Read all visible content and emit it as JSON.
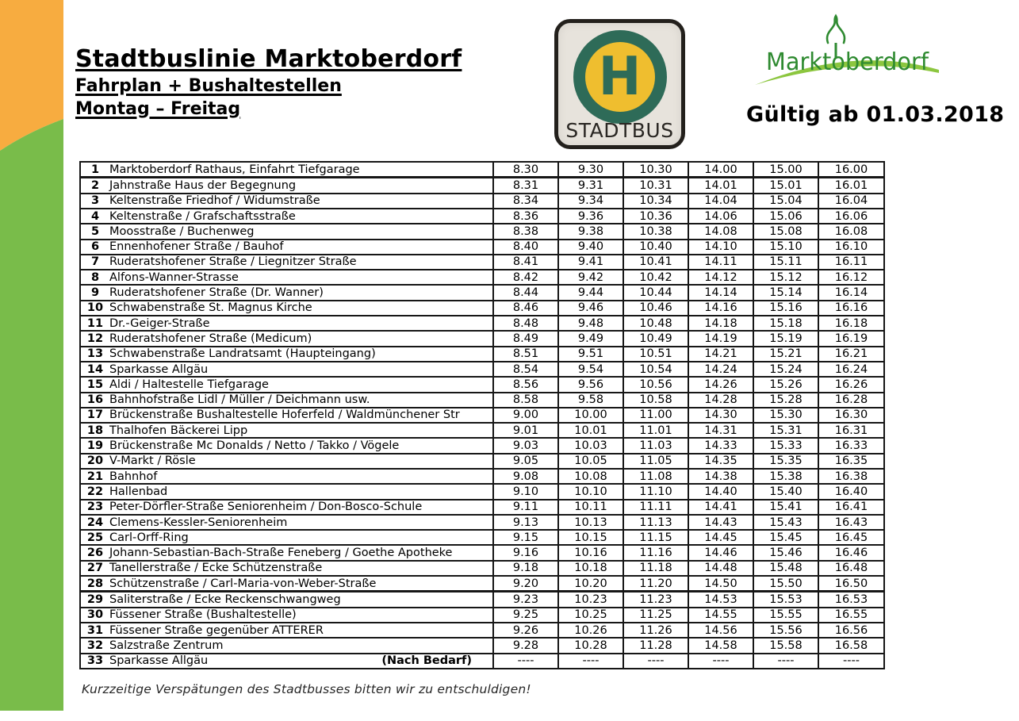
{
  "page": {
    "title_lines": [
      "Stadtbuslinie Marktoberdorf",
      "Fahrplan + Bushaltestellen",
      "Montag – Freitag"
    ],
    "validity": "Gültig ab 01.03.2018",
    "footer_note": "Kurzzeitige Verspätungen des Stadtbusses bitten wir zu entschuldigen!"
  },
  "stadtbus_sign": {
    "h_letter": "H",
    "caption": "STADTBUS"
  },
  "city_logo": {
    "text": "Marktoberdorf"
  },
  "colors": {
    "band_orange": "#F7AC40",
    "band_green": "#79BC4A",
    "sign_green": "#2E6B58",
    "sign_yellow": "#EFBE2F",
    "sign_bg": "#E7E3DC",
    "logo_green": "#2E8A30",
    "logo_swoosh": "#8CC63F",
    "table_border": "#161616"
  },
  "timetable": {
    "thick_border_after": [
      "1",
      "28"
    ],
    "rows": [
      {
        "nr": "1",
        "name": "Marktoberdorf Rathaus, Einfahrt Tiefgarage",
        "times": [
          "8.30",
          "9.30",
          "10.30",
          "14.00",
          "15.00",
          "16.00"
        ]
      },
      {
        "nr": "2",
        "name": "Jahnstraße Haus der Begegnung",
        "times": [
          "8.31",
          "9.31",
          "10.31",
          "14.01",
          "15.01",
          "16.01"
        ]
      },
      {
        "nr": "3",
        "name": "Keltenstraße Friedhof / Widumstraße",
        "times": [
          "8.34",
          "9.34",
          "10.34",
          "14.04",
          "15.04",
          "16.04"
        ]
      },
      {
        "nr": "4",
        "name": "Keltenstraße / Grafschaftsstraße",
        "times": [
          "8.36",
          "9.36",
          "10.36",
          "14.06",
          "15.06",
          "16.06"
        ]
      },
      {
        "nr": "5",
        "name": "Moosstraße / Buchenweg",
        "times": [
          "8.38",
          "9.38",
          "10.38",
          "14.08",
          "15.08",
          "16.08"
        ]
      },
      {
        "nr": "6",
        "name": "Ennenhofener Straße / Bauhof",
        "times": [
          "8.40",
          "9.40",
          "10.40",
          "14.10",
          "15.10",
          "16.10"
        ]
      },
      {
        "nr": "7",
        "name": "Ruderatshofener Straße / Liegnitzer Straße",
        "times": [
          "8.41",
          "9.41",
          "10.41",
          "14.11",
          "15.11",
          "16.11"
        ]
      },
      {
        "nr": "8",
        "name": "Alfons-Wanner-Strasse",
        "times": [
          "8.42",
          "9.42",
          "10.42",
          "14.12",
          "15.12",
          "16.12"
        ]
      },
      {
        "nr": "9",
        "name": "Ruderatshofener Straße (Dr. Wanner)",
        "times": [
          "8.44",
          "9.44",
          "10.44",
          "14.14",
          "15.14",
          "16.14"
        ]
      },
      {
        "nr": "10",
        "name": "Schwabenstraße St. Magnus Kirche",
        "times": [
          "8.46",
          "9.46",
          "10.46",
          "14.16",
          "15.16",
          "16.16"
        ]
      },
      {
        "nr": "11",
        "name": "Dr.-Geiger-Straße",
        "times": [
          "8.48",
          "9.48",
          "10.48",
          "14.18",
          "15.18",
          "16.18"
        ]
      },
      {
        "nr": "12",
        "name": "Ruderatshofener Straße (Medicum)",
        "times": [
          "8.49",
          "9.49",
          "10.49",
          "14.19",
          "15.19",
          "16.19"
        ]
      },
      {
        "nr": "13",
        "name": "Schwabenstraße Landratsamt (Haupteingang)",
        "times": [
          "8.51",
          "9.51",
          "10.51",
          "14.21",
          "15.21",
          "16.21"
        ]
      },
      {
        "nr": "14",
        "name": "Sparkasse Allgäu",
        "times": [
          "8.54",
          "9.54",
          "10.54",
          "14.24",
          "15.24",
          "16.24"
        ]
      },
      {
        "nr": "15",
        "name": "Aldi / Haltestelle Tiefgarage",
        "times": [
          "8.56",
          "9.56",
          "10.56",
          "14.26",
          "15.26",
          "16.26"
        ]
      },
      {
        "nr": "16",
        "name": "Bahnhofstraße Lidl / Müller / Deichmann usw.",
        "times": [
          "8.58",
          "9.58",
          "10.58",
          "14.28",
          "15.28",
          "16.28"
        ]
      },
      {
        "nr": "17",
        "name": "Brückenstraße Bushaltestelle Hoferfeld / Waldmünchener Str",
        "times": [
          "9.00",
          "10.00",
          "11.00",
          "14.30",
          "15.30",
          "16.30"
        ]
      },
      {
        "nr": "18",
        "name": "Thalhofen Bäckerei Lipp",
        "times": [
          "9.01",
          "10.01",
          "11.01",
          "14.31",
          "15.31",
          "16.31"
        ]
      },
      {
        "nr": "19",
        "name": "Brückenstraße Mc Donalds / Netto / Takko / Vögele",
        "times": [
          "9.03",
          "10.03",
          "11.03",
          "14.33",
          "15.33",
          "16.33"
        ]
      },
      {
        "nr": "20",
        "name": "V-Markt / Rösle",
        "times": [
          "9.05",
          "10.05",
          "11.05",
          "14.35",
          "15.35",
          "16.35"
        ]
      },
      {
        "nr": "21",
        "name": "Bahnhof",
        "times": [
          "9.08",
          "10.08",
          "11.08",
          "14.38",
          "15.38",
          "16.38"
        ]
      },
      {
        "nr": "22",
        "name": "Hallenbad",
        "times": [
          "9.10",
          "10.10",
          "11.10",
          "14.40",
          "15.40",
          "16.40"
        ]
      },
      {
        "nr": "23",
        "name": "Peter-Dörfler-Straße Seniorenheim / Don-Bosco-Schule",
        "times": [
          "9.11",
          "10.11",
          "11.11",
          "14.41",
          "15.41",
          "16.41"
        ]
      },
      {
        "nr": "24",
        "name": "Clemens-Kessler-Seniorenheim",
        "times": [
          "9.13",
          "10.13",
          "11.13",
          "14.43",
          "15.43",
          "16.43"
        ]
      },
      {
        "nr": "25",
        "name": "Carl-Orff-Ring",
        "times": [
          "9.15",
          "10.15",
          "11.15",
          "14.45",
          "15.45",
          "16.45"
        ]
      },
      {
        "nr": "26",
        "name": "Johann-Sebastian-Bach-Straße Feneberg / Goethe Apotheke",
        "times": [
          "9.16",
          "10.16",
          "11.16",
          "14.46",
          "15.46",
          "16.46"
        ]
      },
      {
        "nr": "27",
        "name": "Tanellerstraße / Ecke Schützenstraße",
        "times": [
          "9.18",
          "10.18",
          "11.18",
          "14.48",
          "15.48",
          "16.48"
        ]
      },
      {
        "nr": "28",
        "name": "Schützenstraße / Carl-Maria-von-Weber-Straße",
        "times": [
          "9.20",
          "10.20",
          "11.20",
          "14.50",
          "15.50",
          "16.50"
        ]
      },
      {
        "nr": "29",
        "name": "Saliterstraße / Ecke Reckenschwangweg",
        "times": [
          "9.23",
          "10.23",
          "11.23",
          "14.53",
          "15.53",
          "16.53"
        ]
      },
      {
        "nr": "30",
        "name": "Füssener Straße (Bushaltestelle)",
        "times": [
          "9.25",
          "10.25",
          "11.25",
          "14.55",
          "15.55",
          "16.55"
        ]
      },
      {
        "nr": "31",
        "name": "Füssener Straße gegenüber ATTERER",
        "times": [
          "9.26",
          "10.26",
          "11.26",
          "14.56",
          "15.56",
          "16.56"
        ]
      },
      {
        "nr": "32",
        "name": "Salzstraße Zentrum",
        "times": [
          "9.28",
          "10.28",
          "11.28",
          "14.58",
          "15.58",
          "16.58"
        ]
      },
      {
        "nr": "33",
        "name": "Sparkasse Allgäu",
        "note": "(Nach Bedarf)",
        "times": [
          "----",
          "----",
          "----",
          "----",
          "----",
          "----"
        ]
      }
    ]
  }
}
